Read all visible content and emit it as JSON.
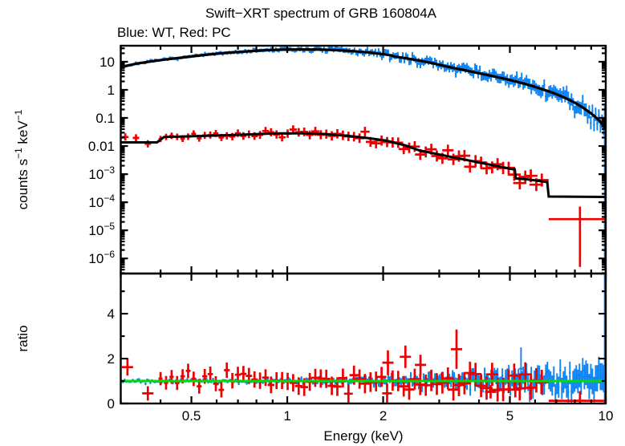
{
  "title": "Swift−XRT spectrum of GRB 160804A",
  "subtitle": "Blue: WT, Red: PC",
  "xlabel": "Energy (keV)",
  "colors": {
    "wt": "#0f82f0",
    "pc": "#ee0000",
    "model": "#000000",
    "ratio_line": "#00dd00",
    "frame": "#000000",
    "title_text": "#000000",
    "subtitle_text": "#000000"
  },
  "chart_data": {
    "type": "scatter",
    "x_scale": "log",
    "x_range": [
      0.3,
      10
    ],
    "x_major_ticks": [
      {
        "v": 0.5,
        "label": "0.5"
      },
      {
        "v": 1,
        "label": "1"
      },
      {
        "v": 2,
        "label": "2"
      },
      {
        "v": 5,
        "label": "5"
      },
      {
        "v": 10,
        "label": "10"
      }
    ],
    "x_minor_ticks": [
      0.3,
      0.4,
      0.6,
      0.7,
      0.8,
      0.9,
      3,
      4,
      6,
      7,
      8,
      9
    ],
    "top_panel": {
      "y_scale": "log",
      "y_range": [
        2.9e-07,
        37.2
      ],
      "ylabel_segments": [
        {
          "t": "counts s"
        },
        {
          "t": "−1",
          "sup": true
        },
        {
          "t": " keV"
        },
        {
          "t": "−1",
          "sup": true
        }
      ],
      "y_ticks": [
        {
          "v": 10,
          "t": "10"
        },
        {
          "v": 1,
          "t": "1"
        },
        {
          "v": 0.1,
          "t": "0.1"
        },
        {
          "v": 0.01,
          "t": "0.01"
        },
        {
          "v": 0.001,
          "t": "10",
          "exp": "−3"
        },
        {
          "v": 0.0001,
          "t": "10",
          "exp": "−4"
        },
        {
          "v": 1e-05,
          "t": "10",
          "exp": "−5"
        },
        {
          "v": 1e-06,
          "t": "10",
          "exp": "−6"
        }
      ],
      "series": [
        {
          "name": "wt-model",
          "type": "model",
          "color_key": "model",
          "lw": 3.2,
          "anchors": [
            [
              0.3,
              6.5
            ],
            [
              0.34,
              8.8
            ],
            [
              0.4,
              11.5
            ],
            [
              0.47,
              14.2
            ],
            [
              0.55,
              17.5
            ],
            [
              0.65,
              21.0
            ],
            [
              0.75,
              23.5
            ],
            [
              0.85,
              25.5
            ],
            [
              0.95,
              26.8
            ],
            [
              1.05,
              27.4
            ],
            [
              1.15,
              27.5
            ],
            [
              1.3,
              27.0
            ],
            [
              1.45,
              25.8
            ],
            [
              1.6,
              24.0
            ],
            [
              1.8,
              21.5
            ],
            [
              2.0,
              18.5
            ],
            [
              2.12,
              16.8
            ],
            [
              2.18,
              15.2
            ],
            [
              2.35,
              13.4
            ],
            [
              2.6,
              11.0
            ],
            [
              2.9,
              8.6
            ],
            [
              3.2,
              6.6
            ],
            [
              3.6,
              5.0
            ],
            [
              4.0,
              3.9
            ],
            [
              4.5,
              2.95
            ],
            [
              5.0,
              2.25
            ],
            [
              5.5,
              1.7
            ],
            [
              6.0,
              1.28
            ],
            [
              6.5,
              0.95
            ],
            [
              7.0,
              0.7
            ],
            [
              7.5,
              0.5
            ],
            [
              8.0,
              0.35
            ],
            [
              8.5,
              0.23
            ],
            [
              9.0,
              0.145
            ],
            [
              9.5,
              0.085
            ],
            [
              10.0,
              0.042
            ]
          ]
        },
        {
          "name": "pc-model",
          "type": "model",
          "color_key": "model",
          "lw": 3.0,
          "anchors": [
            [
              0.3,
              0.0135
            ],
            [
              0.39,
              0.0135
            ],
            [
              0.41,
              0.021
            ],
            [
              0.55,
              0.023
            ],
            [
              0.7,
              0.025
            ],
            [
              0.9,
              0.028
            ],
            [
              1.1,
              0.0285
            ],
            [
              1.3,
              0.027
            ],
            [
              1.55,
              0.023
            ],
            [
              1.8,
              0.019
            ],
            [
              2.05,
              0.0155
            ],
            [
              2.15,
              0.0135
            ],
            [
              2.35,
              0.0105
            ],
            [
              2.6,
              0.007
            ],
            [
              2.9,
              0.0054
            ],
            [
              3.2,
              0.0043
            ],
            [
              3.6,
              0.0033
            ],
            [
              4.0,
              0.0026
            ],
            [
              4.5,
              0.002
            ],
            [
              5.0,
              0.00155
            ],
            [
              5.18,
              0.00148
            ],
            [
              5.22,
              0.0007
            ],
            [
              5.6,
              0.00066
            ],
            [
              6.0,
              0.0006
            ],
            [
              6.55,
              0.00052
            ],
            [
              6.62,
              0.00016
            ],
            [
              9.95,
              0.000155
            ]
          ]
        },
        {
          "name": "wt-data",
          "type": "data",
          "color_key": "wt",
          "model": "wt-model",
          "n": 300,
          "e_min": 0.305,
          "e_max": 9.85,
          "sigma": [
            0.02,
            0.13,
            2.0
          ],
          "err": [
            0.045,
            0.2,
            2.0
          ],
          "halfw": [
            1.2,
            0
          ],
          "lw": 1.9,
          "seed": 7
        },
        {
          "name": "pc-data",
          "type": "data",
          "color_key": "pc",
          "model": "pc-model",
          "n": 70,
          "e_min": 0.4,
          "e_max": 6.3,
          "sigma": [
            0.055,
            0.06,
            1.0
          ],
          "err": [
            0.11,
            0.12,
            1.0
          ],
          "halfw": [
            2.5,
            6
          ],
          "lw": 2.7,
          "seed": 11,
          "extra_points": [
            [
              0.31,
              0.021
            ],
            [
              0.335,
              0.0195
            ],
            [
              0.365,
              0.012
            ]
          ]
        }
      ],
      "specials": [
        {
          "kind": "vbar",
          "color_key": "wt",
          "E": 9.93,
          "lo": 4e-07,
          "hi": 0.3,
          "lw": 2.2
        },
        {
          "kind": "point",
          "color_key": "pc",
          "E": 8.3,
          "c": 2.5e-05,
          "lo": 5e-07,
          "hi": 7e-05,
          "xlo": 6.62,
          "xhi": 9.95,
          "lw": 2.7
        }
      ]
    },
    "ratio_panel": {
      "y_scale": "linear",
      "y_range": [
        0,
        5.79
      ],
      "ylabel": "ratio",
      "y_ticks": [
        {
          "v": 0,
          "t": "0"
        },
        {
          "v": 2,
          "t": "2"
        },
        {
          "v": 4,
          "t": "4"
        }
      ],
      "y_minor_ticks": [
        1,
        3,
        5
      ],
      "reference_line": {
        "v": 1,
        "color_key": "ratio_line",
        "lw": 3
      },
      "series": [
        {
          "name": "wt-ratio",
          "type": "ratio",
          "color_key": "wt",
          "n": 300,
          "e_min": 0.305,
          "e_max": 9.85,
          "sigma": [
            0.045,
            0.33,
            3.0
          ],
          "err": [
            0.06,
            0.55,
            3.0
          ],
          "halfw": [
            1.2,
            0
          ],
          "lw": 1.9,
          "seed": 21,
          "outliers": [
            [
              5.42,
              1.55,
              0.95
            ]
          ]
        },
        {
          "name": "pc-ratio",
          "type": "ratio",
          "color_key": "pc",
          "n": 70,
          "e_min": 0.4,
          "e_max": 6.3,
          "sigma": [
            0.2,
            0.05,
            1.0
          ],
          "err": [
            0.3,
            0.25,
            1.0
          ],
          "halfw": [
            2.5,
            6
          ],
          "lw": 2.7,
          "seed": 31,
          "outliers": [
            [
              0.315,
              1.62,
              0.38
            ],
            [
              0.365,
              0.45,
              0.32
            ],
            [
              2.07,
              1.82,
              0.55
            ],
            [
              2.35,
              2.08,
              0.5
            ],
            [
              2.62,
              1.72,
              0.45
            ],
            [
              3.4,
              2.42,
              0.88
            ],
            [
              4.35,
              0.52,
              0.3
            ],
            [
              5.2,
              0.62,
              0.35
            ]
          ]
        }
      ],
      "specials": [
        {
          "kind": "vbar",
          "color_key": "wt",
          "E": 9.93,
          "lo": 0.02,
          "hi": 5.75,
          "lw": 2.2
        },
        {
          "kind": "point",
          "color_key": "pc",
          "E": 8.3,
          "c": 0.12,
          "lo": 0.0,
          "hi": 0.55,
          "xlo": 6.62,
          "xhi": 9.95,
          "lw": 2.7
        }
      ]
    }
  }
}
